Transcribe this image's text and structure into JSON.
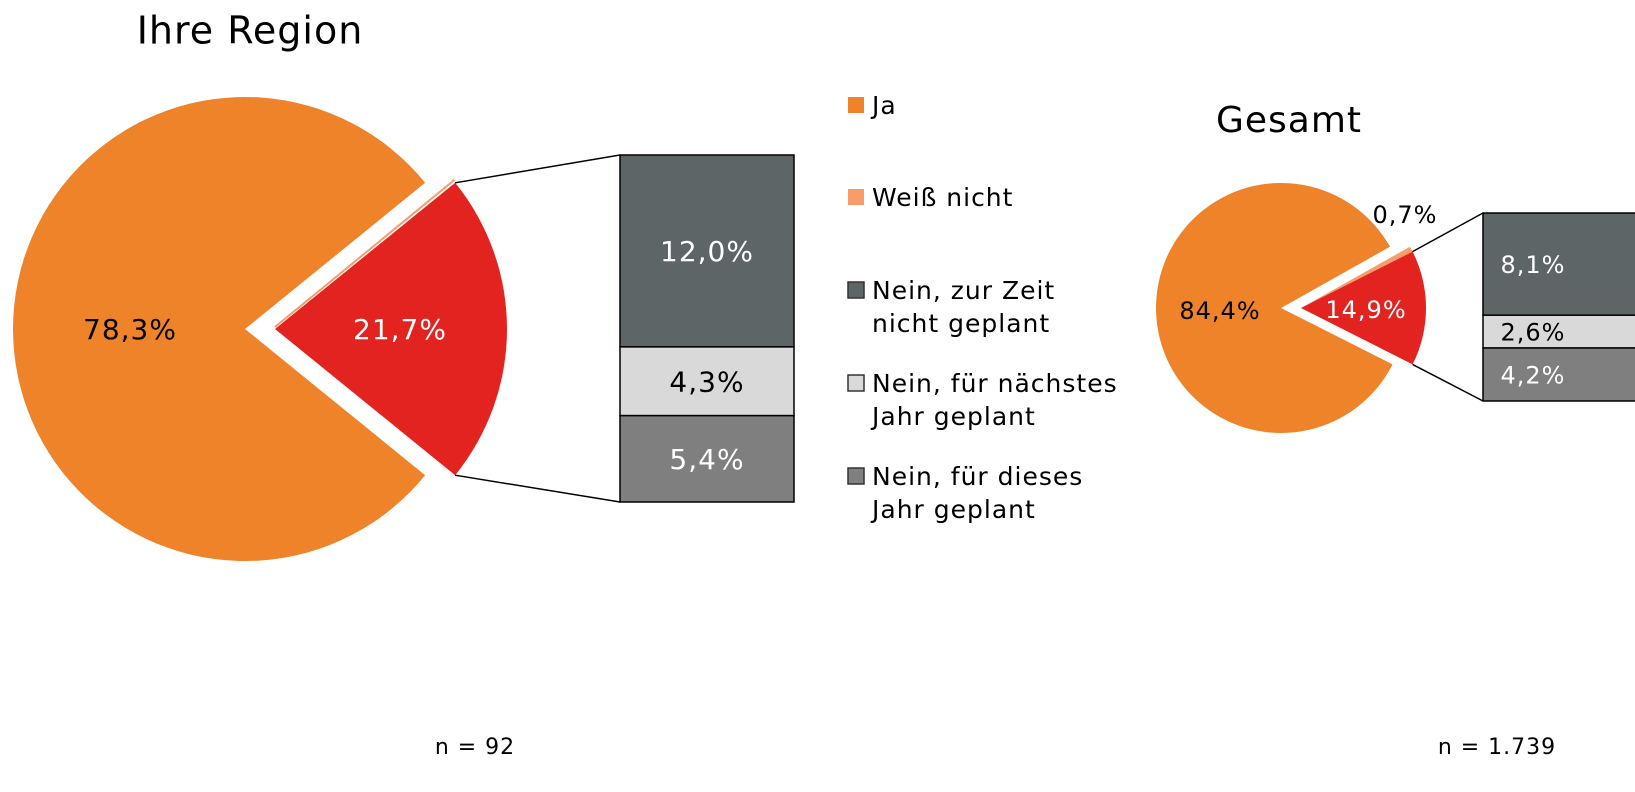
{
  "chart_data": [
    {
      "type": "pie",
      "title": "Ihre Region",
      "pie": {
        "values": [
          78.3,
          0,
          21.7
        ],
        "value_labels": [
          "78,3%",
          null,
          "21,7%"
        ],
        "colors": [
          "#ee8329",
          "#f79c6a",
          "#e2231f"
        ]
      },
      "bar": {
        "values": [
          12.0,
          4.3,
          5.4
        ],
        "value_labels": [
          "12,0%",
          "4,3%",
          "5,4%"
        ],
        "colors": [
          "#5d6566",
          "#d9d9d9",
          "#7f7f7f"
        ]
      },
      "note": "n = 92"
    },
    {
      "type": "pie",
      "title": "Gesamt",
      "pie": {
        "values": [
          84.4,
          0.7,
          14.9
        ],
        "value_labels": [
          "84,4%",
          "0,7%",
          "14,9%"
        ],
        "colors": [
          "#ee8329",
          "#f79c6a",
          "#e2231f"
        ]
      },
      "bar": {
        "values": [
          8.1,
          2.6,
          4.2
        ],
        "value_labels": [
          "8,1%",
          "2,6%",
          "4,2%"
        ],
        "colors": [
          "#5d6566",
          "#d9d9d9",
          "#7f7f7f"
        ]
      },
      "note": "n = 1.739"
    }
  ],
  "legend": [
    {
      "lines": [
        "Ja"
      ],
      "color": "#ee8329"
    },
    {
      "lines": [
        "Weiß nicht"
      ],
      "color": "#f79c6a"
    },
    {
      "lines": [
        "Nein, zur Zeit",
        "nicht geplant"
      ],
      "color": "#5d6566"
    },
    {
      "lines": [
        "Nein, für nächstes",
        "Jahr geplant"
      ],
      "color": "#d9d9d9"
    },
    {
      "lines": [
        "Nein, für dieses",
        "Jahr geplant"
      ],
      "color": "#7f7f7f"
    }
  ]
}
